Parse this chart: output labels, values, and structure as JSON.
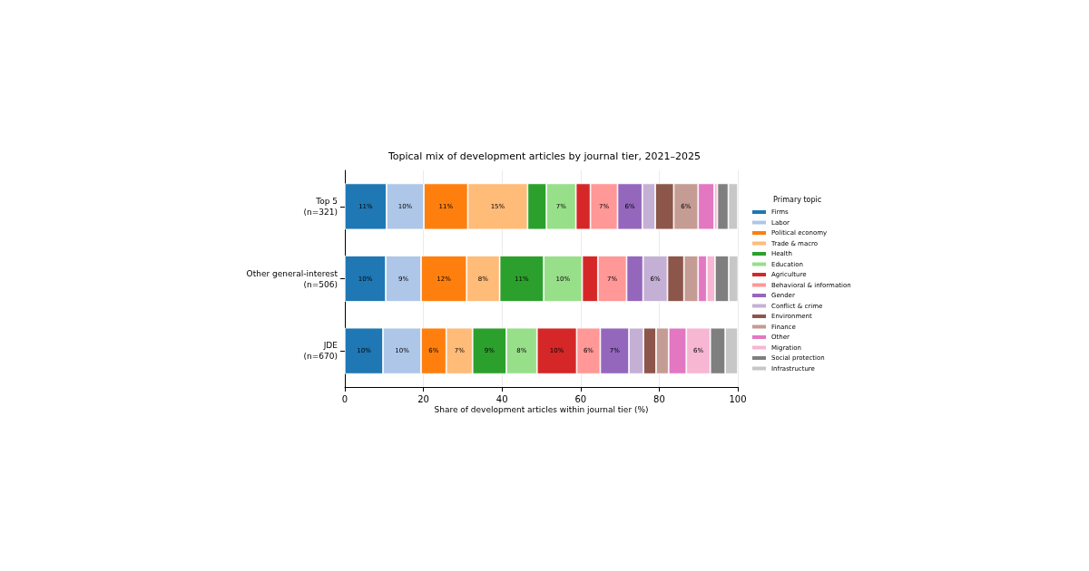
{
  "chart_data": {
    "type": "bar",
    "orientation": "horizontal",
    "stacked": true,
    "title": "Topical mix of development articles by journal tier, 2021–2025",
    "xlabel": "Share of development articles within journal tier (%)",
    "legend_title": "Primary topic",
    "legend": "right",
    "grid": "x",
    "categories": [
      "Top 5\n(n=321)",
      "Other general-interest\n(n=506)",
      "JDE\n(n=670)"
    ],
    "xlim": [
      0,
      100
    ],
    "xticks": [
      0,
      20,
      40,
      60,
      80,
      100
    ],
    "series": [
      {
        "name": "Firms",
        "color": "#1f77b4",
        "values": [
          10.6,
          10.4,
          9.7
        ],
        "value_labels": [
          "11%",
          "10%",
          "10%"
        ]
      },
      {
        "name": "Labor",
        "color": "#aec7e8",
        "values": [
          9.5,
          9.0,
          9.7
        ],
        "value_labels": [
          "10%",
          "9%",
          "10%"
        ]
      },
      {
        "name": "Political economy",
        "color": "#ff7f0e",
        "values": [
          11.2,
          11.6,
          6.4
        ],
        "value_labels": [
          "11%",
          "12%",
          "6%"
        ]
      },
      {
        "name": "Trade & macro",
        "color": "#ffbb78",
        "values": [
          15.2,
          8.4,
          6.7
        ],
        "value_labels": [
          "15%",
          "8%",
          "7%"
        ]
      },
      {
        "name": "Health",
        "color": "#2ca02c",
        "values": [
          4.8,
          11.2,
          8.6
        ],
        "value_labels": [
          null,
          "11%",
          "9%"
        ]
      },
      {
        "name": "Education",
        "color": "#98df8a",
        "values": [
          7.5,
          9.8,
          7.8
        ],
        "value_labels": [
          "7%",
          "10%",
          "8%"
        ]
      },
      {
        "name": "Agriculture",
        "color": "#d62728",
        "values": [
          3.7,
          4.0,
          10.1
        ],
        "value_labels": [
          null,
          null,
          "10%"
        ]
      },
      {
        "name": "Behavioral & information",
        "color": "#ff9896",
        "values": [
          6.9,
          7.3,
          6.0
        ],
        "value_labels": [
          "7%",
          "7%",
          "6%"
        ]
      },
      {
        "name": "Gender",
        "color": "#9467bd",
        "values": [
          6.3,
          4.2,
          7.3
        ],
        "value_labels": [
          "6%",
          null,
          "7%"
        ]
      },
      {
        "name": "Conflict & crime",
        "color": "#c5b0d5",
        "values": [
          3.3,
          6.2,
          3.7
        ],
        "value_labels": [
          null,
          "6%",
          null
        ]
      },
      {
        "name": "Environment",
        "color": "#8c564b",
        "values": [
          4.7,
          4.2,
          3.2
        ],
        "value_labels": [
          null,
          null,
          null
        ]
      },
      {
        "name": "Finance",
        "color": "#c49c94",
        "values": [
          6.2,
          3.6,
          3.2
        ],
        "value_labels": [
          "6%",
          null,
          null
        ]
      },
      {
        "name": "Other",
        "color": "#e377c2",
        "values": [
          4.1,
          2.2,
          4.5
        ],
        "value_labels": [
          null,
          null,
          null
        ]
      },
      {
        "name": "Migration",
        "color": "#f7b6d2",
        "values": [
          0.8,
          2.1,
          6.1
        ],
        "value_labels": [
          null,
          null,
          "6%"
        ]
      },
      {
        "name": "Social protection",
        "color": "#7f7f7f",
        "values": [
          2.8,
          3.5,
          3.8
        ],
        "value_labels": [
          null,
          null,
          null
        ]
      },
      {
        "name": "Infrastructure",
        "color": "#c7c7c7",
        "values": [
          2.4,
          2.5,
          3.2
        ],
        "value_labels": [
          null,
          null,
          null
        ]
      }
    ]
  }
}
